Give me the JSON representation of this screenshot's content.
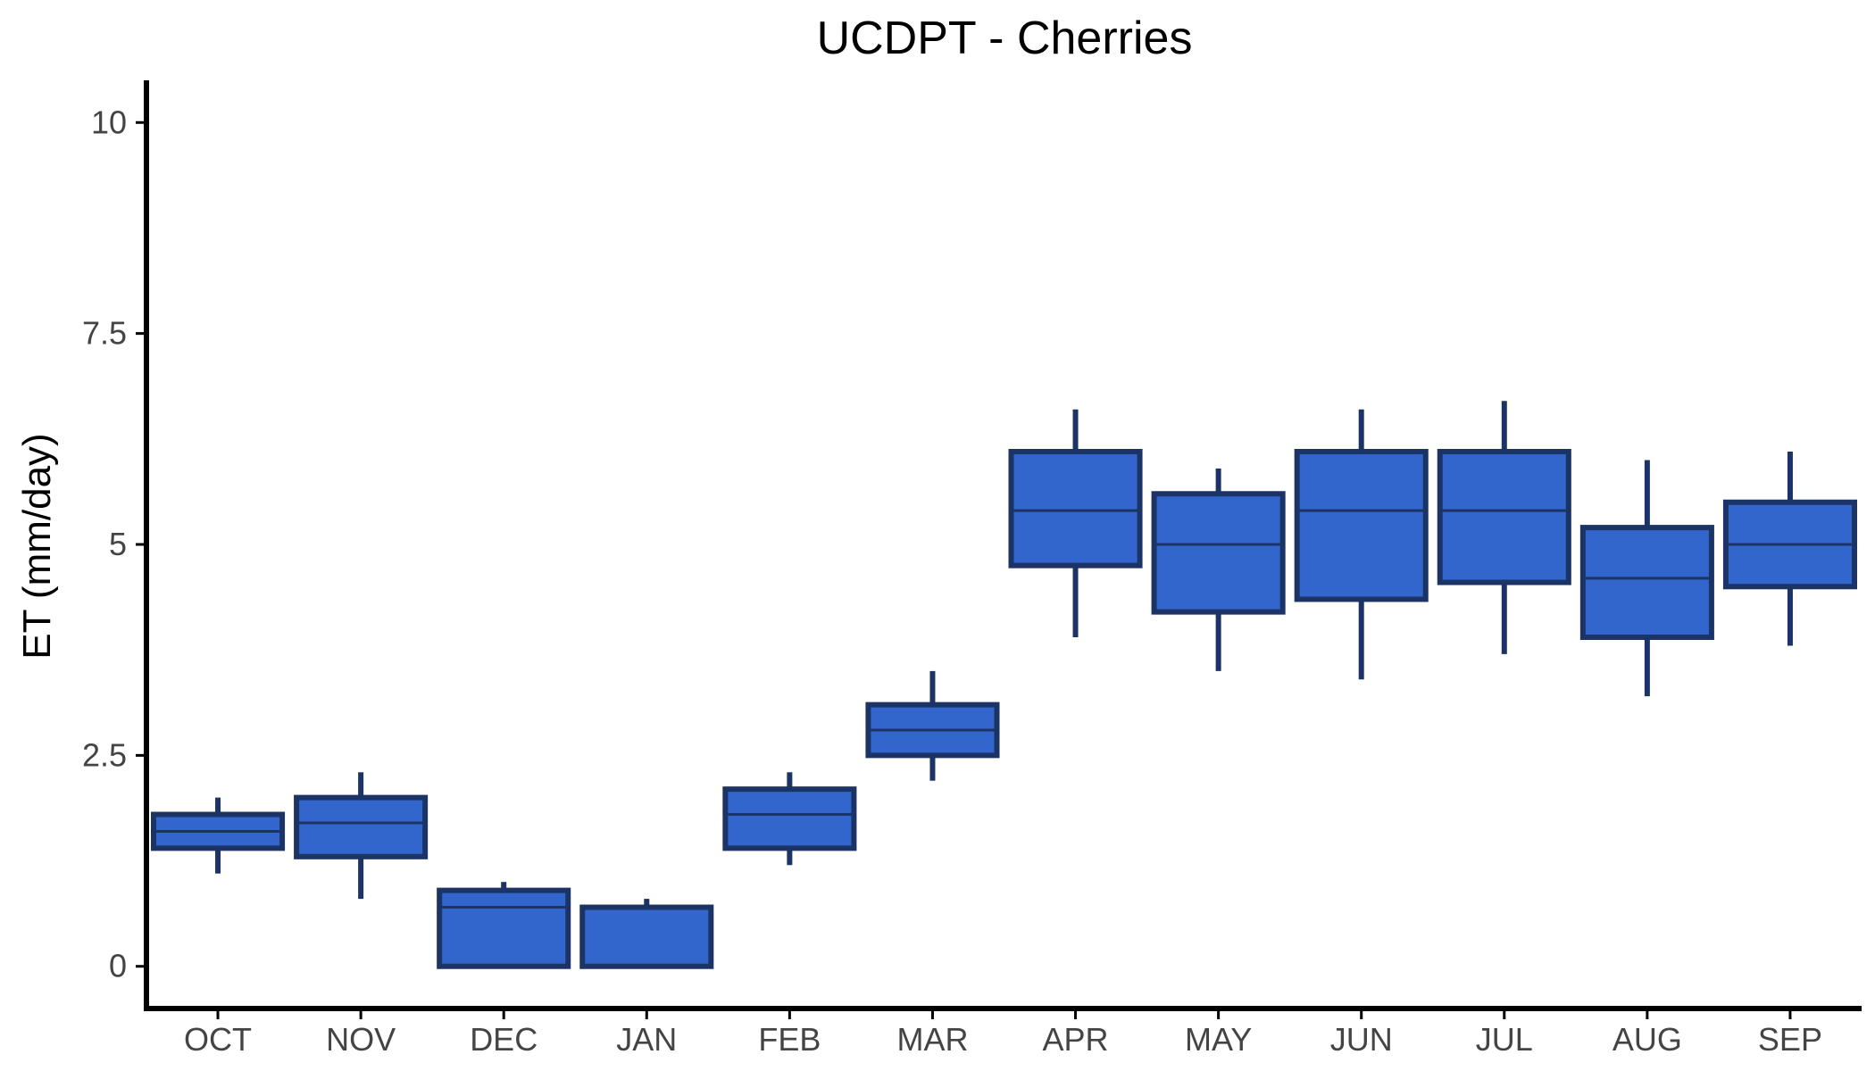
{
  "chart_data": {
    "type": "box",
    "title": "UCDPT - Cherries",
    "xlabel": "",
    "ylabel": "ET (mm/day)",
    "ylim": [
      -0.5,
      10.5
    ],
    "yticks": [
      0,
      2.5,
      5,
      7.5,
      10
    ],
    "ytick_labels": [
      "0",
      "2.5",
      "5",
      "7.5",
      "10"
    ],
    "grid": false,
    "colors": {
      "fill": "#3366cc",
      "outline": "#1c3366"
    },
    "categories": [
      "OCT",
      "NOV",
      "DEC",
      "JAN",
      "FEB",
      "MAR",
      "APR",
      "MAY",
      "JUN",
      "JUL",
      "AUG",
      "SEP"
    ],
    "boxes": [
      {
        "whisker_low": 1.1,
        "q1": 1.4,
        "median": 1.6,
        "q3": 1.8,
        "whisker_high": 2.0
      },
      {
        "whisker_low": 0.8,
        "q1": 1.3,
        "median": 1.7,
        "q3": 2.0,
        "whisker_high": 2.3
      },
      {
        "whisker_low": 0.0,
        "q1": 0.0,
        "median": 0.7,
        "q3": 0.9,
        "whisker_high": 1.0
      },
      {
        "whisker_low": 0.0,
        "q1": 0.0,
        "median": 0.7,
        "q3": 0.7,
        "whisker_high": 0.8
      },
      {
        "whisker_low": 1.2,
        "q1": 1.4,
        "median": 1.8,
        "q3": 2.1,
        "whisker_high": 2.3
      },
      {
        "whisker_low": 2.2,
        "q1": 2.5,
        "median": 2.8,
        "q3": 3.1,
        "whisker_high": 3.5
      },
      {
        "whisker_low": 3.9,
        "q1": 4.75,
        "median": 5.4,
        "q3": 6.1,
        "whisker_high": 6.6
      },
      {
        "whisker_low": 3.5,
        "q1": 4.2,
        "median": 5.0,
        "q3": 5.6,
        "whisker_high": 5.9
      },
      {
        "whisker_low": 3.4,
        "q1": 4.35,
        "median": 5.4,
        "q3": 6.1,
        "whisker_high": 6.6
      },
      {
        "whisker_low": 3.7,
        "q1": 4.55,
        "median": 5.4,
        "q3": 6.1,
        "whisker_high": 6.7
      },
      {
        "whisker_low": 3.2,
        "q1": 3.9,
        "median": 4.6,
        "q3": 5.2,
        "whisker_high": 6.0
      },
      {
        "whisker_low": 3.8,
        "q1": 4.5,
        "median": 5.0,
        "q3": 5.5,
        "whisker_high": 6.1
      }
    ]
  }
}
